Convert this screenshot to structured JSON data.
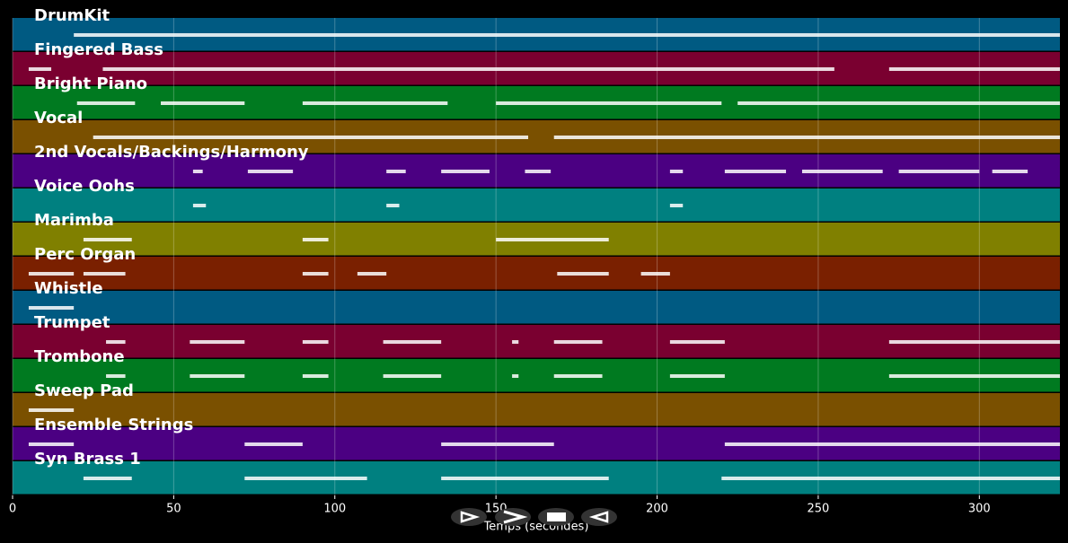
{
  "chart_data": {
    "type": "pianoroll",
    "xlabel": "Temps (secondes)",
    "xlim": [
      0,
      325
    ],
    "xticks": [
      0,
      50,
      100,
      150,
      200,
      250,
      300
    ],
    "grid": true,
    "tracks": [
      {
        "name": "DrumKit",
        "color": "#005a82",
        "segments": [
          [
            19,
            325
          ]
        ]
      },
      {
        "name": "Fingered Bass",
        "color": "#7a0030",
        "segments": [
          [
            5,
            12
          ],
          [
            28,
            255
          ],
          [
            272,
            325
          ]
        ]
      },
      {
        "name": "Bright Piano",
        "color": "#007a20",
        "segments": [
          [
            20,
            38
          ],
          [
            46,
            72
          ],
          [
            90,
            135
          ],
          [
            150,
            220
          ],
          [
            225,
            325
          ]
        ]
      },
      {
        "name": "Vocal",
        "color": "#7a5000",
        "segments": [
          [
            25,
            160
          ],
          [
            168,
            325
          ]
        ]
      },
      {
        "name": "2nd Vocals/Backings/Harmony",
        "color": "#4b0082",
        "segments": [
          [
            56,
            59
          ],
          [
            73,
            87
          ],
          [
            116,
            122
          ],
          [
            133,
            148
          ],
          [
            159,
            167
          ],
          [
            204,
            208
          ],
          [
            221,
            240
          ],
          [
            245,
            270
          ],
          [
            275,
            300
          ],
          [
            304,
            315
          ]
        ]
      },
      {
        "name": "Voice Oohs",
        "color": "#008080",
        "segments": [
          [
            56,
            60
          ],
          [
            116,
            120
          ],
          [
            204,
            208
          ]
        ]
      },
      {
        "name": "Marimba",
        "color": "#808000",
        "segments": [
          [
            22,
            37
          ],
          [
            90,
            98
          ],
          [
            150,
            185
          ]
        ]
      },
      {
        "name": "Perc Organ",
        "color": "#7a2000",
        "segments": [
          [
            5,
            19
          ],
          [
            22,
            35
          ],
          [
            90,
            98
          ],
          [
            107,
            116
          ],
          [
            169,
            185
          ],
          [
            195,
            204
          ]
        ]
      },
      {
        "name": "Whistle",
        "color": "#005a82",
        "segments": [
          [
            5,
            19
          ]
        ]
      },
      {
        "name": "Trumpet",
        "color": "#7a0030",
        "segments": [
          [
            29,
            35
          ],
          [
            55,
            72
          ],
          [
            90,
            98
          ],
          [
            115,
            133
          ],
          [
            155,
            157
          ],
          [
            168,
            183
          ],
          [
            204,
            221
          ],
          [
            272,
            325
          ]
        ]
      },
      {
        "name": "Trombone",
        "color": "#007a20",
        "segments": [
          [
            29,
            35
          ],
          [
            55,
            72
          ],
          [
            90,
            98
          ],
          [
            115,
            133
          ],
          [
            155,
            157
          ],
          [
            168,
            183
          ],
          [
            204,
            221
          ],
          [
            272,
            325
          ]
        ]
      },
      {
        "name": "Sweep Pad",
        "color": "#7a5000",
        "segments": [
          [
            5,
            19
          ]
        ]
      },
      {
        "name": "Ensemble Strings",
        "color": "#4b0082",
        "segments": [
          [
            5,
            19
          ],
          [
            72,
            90
          ],
          [
            133,
            150
          ],
          [
            150,
            168
          ],
          [
            221,
            325
          ]
        ]
      },
      {
        "name": "Syn Brass 1",
        "color": "#008080",
        "segments": [
          [
            22,
            37
          ],
          [
            72,
            110
          ],
          [
            133,
            185
          ],
          [
            220,
            325
          ]
        ]
      }
    ]
  }
}
